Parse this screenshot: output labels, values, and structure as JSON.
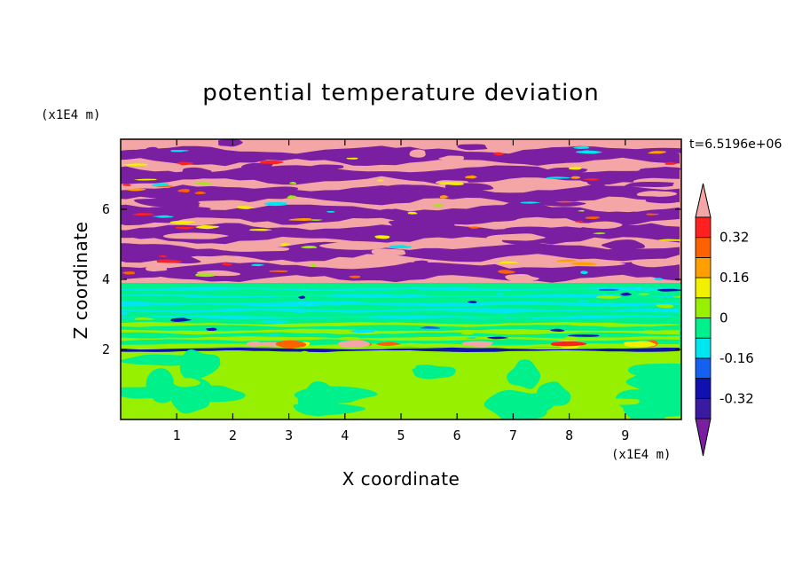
{
  "chart_data": {
    "type": "heatmap",
    "title": "potential temperature deviation",
    "xlabel": "X coordinate",
    "ylabel": "Z coordinate",
    "x_unit": "(x1E4 m)",
    "y_unit": "(x1E4 m)",
    "time_label": "t=6.5196e+06",
    "xlim": [
      0,
      10
    ],
    "ylim": [
      0,
      8
    ],
    "x_ticks": [
      "1",
      "2",
      "3",
      "4",
      "5",
      "6",
      "7",
      "8",
      "9"
    ],
    "y_ticks": [
      "2",
      "4",
      "6"
    ],
    "colorbar": {
      "tick_labels": [
        "0.32",
        "0.16",
        "0",
        "-0.16",
        "-0.32"
      ],
      "tick_values": [
        0.32,
        0.16,
        0,
        -0.16,
        -0.32
      ],
      "levels": [
        -0.4,
        -0.32,
        -0.24,
        -0.16,
        -0.08,
        0,
        0.08,
        0.16,
        0.24,
        0.32,
        0.4
      ],
      "colors": [
        "#7a1fa2",
        "#3a1aa0",
        "#1010b0",
        "#1460f0",
        "#00e6f0",
        "#00f08c",
        "#96f000",
        "#f0f000",
        "#ffa000",
        "#ff6000",
        "#ff2020",
        "#f4a6a6"
      ],
      "extend": "both"
    },
    "regions": [
      {
        "z_range": [
          0,
          2
        ],
        "description": "mostly 0 to 0.08 with 0 to -0.08 patches"
      },
      {
        "z_range": [
          2,
          3.9
        ],
        "description": "near 0, thin bands of -0.08 to 0.08"
      },
      {
        "z_range": [
          3.9,
          8
        ],
        "description": "alternating layers below -0.4 and above 0.4"
      }
    ]
  }
}
